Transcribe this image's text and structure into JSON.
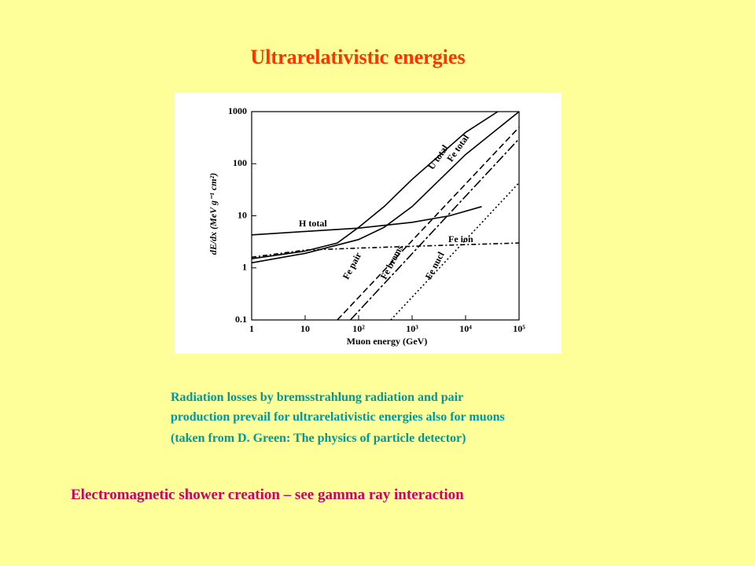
{
  "title": "Ultrarelativistic energies",
  "caption": [
    "Radiation losses by bremsstrahlung radiation  and pair",
    "production prevail for ultrarelativistic energies also for muons",
    "(taken from D. Green: The physics of particle detector)"
  ],
  "footer": "Electromagnetic shower creation – see gamma ray interaction",
  "chart_data": {
    "type": "line",
    "x_label": "Muon energy (GeV)",
    "y_label": "dE/dx (MeV g⁻¹ cm²)",
    "xscale": "log",
    "yscale": "log",
    "xlim": [
      1,
      100000
    ],
    "ylim": [
      0.1,
      1000
    ],
    "xticks": [
      1,
      10,
      {
        "value": 100,
        "label": "10²"
      },
      {
        "value": 1000,
        "label": "10³"
      },
      {
        "value": 10000,
        "label": "10⁴"
      },
      {
        "value": 100000,
        "label": "10⁵"
      }
    ],
    "yticks": [
      0.1,
      1,
      10,
      100,
      1000
    ],
    "series": [
      {
        "name": "H total",
        "color": "#000000",
        "line_style": "solid",
        "x": [
          1,
          10,
          100,
          1000,
          5000,
          20000
        ],
        "values": [
          4.3,
          5,
          5.8,
          7.5,
          10,
          15
        ]
      },
      {
        "name": "U total",
        "color": "#000000",
        "line_style": "solid",
        "x": [
          1,
          10,
          40,
          100,
          300,
          1000,
          10000,
          40000
        ],
        "values": [
          1.5,
          2.1,
          3,
          6,
          15,
          50,
          400,
          1000
        ]
      },
      {
        "name": "Fe total",
        "color": "#000000",
        "line_style": "solid",
        "x": [
          1,
          10,
          100,
          300,
          1000,
          10000,
          100000
        ],
        "values": [
          1.25,
          1.9,
          3.5,
          6,
          15,
          150,
          1000
        ]
      },
      {
        "name": "Fe ion",
        "color": "#000000",
        "line_style": "dashdot",
        "x": [
          1,
          10,
          100,
          1000,
          100000
        ],
        "values": [
          1.6,
          2.2,
          2.4,
          2.6,
          3
        ]
      },
      {
        "name": "Fe pair",
        "color": "#000000",
        "line_style": "dashed",
        "x": [
          40,
          100000
        ],
        "values": [
          0.1,
          500
        ]
      },
      {
        "name": "Fe brems",
        "color": "#000000",
        "line_style": "longdash",
        "x": [
          70,
          100000
        ],
        "values": [
          0.1,
          300
        ]
      },
      {
        "name": "Fe nucl",
        "color": "#000000",
        "line_style": "dotted",
        "x": [
          400,
          100000
        ],
        "values": [
          0.1,
          43
        ]
      }
    ]
  }
}
